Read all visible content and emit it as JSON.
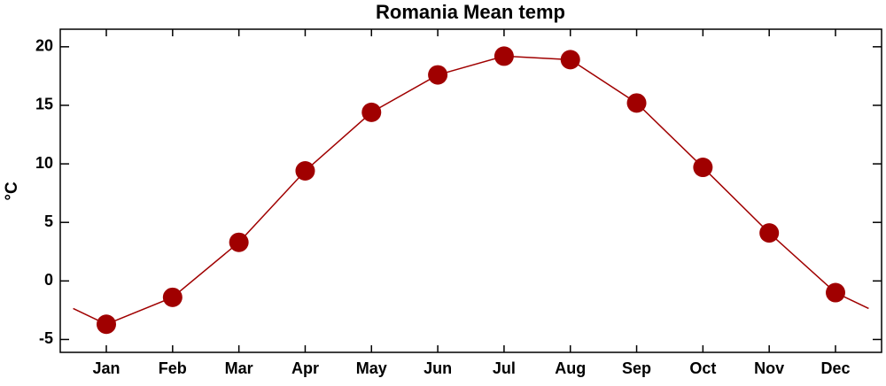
{
  "chart_data": {
    "type": "line",
    "title": "Romania Mean temp",
    "y_label": "°C",
    "categories": [
      "Jan",
      "Feb",
      "Mar",
      "Apr",
      "May",
      "Jun",
      "Jul",
      "Aug",
      "Sep",
      "Oct",
      "Nov",
      "Dec"
    ],
    "series": [
      {
        "name": "Mean temp",
        "color": "#a00000",
        "values": [
          -3.7,
          -1.4,
          3.3,
          9.4,
          14.4,
          17.6,
          19.2,
          18.9,
          15.2,
          9.7,
          4.1,
          -1.0
        ]
      }
    ],
    "ylim": [
      -6.1,
      21.5
    ],
    "yticks": [
      -5,
      0,
      5,
      10,
      15,
      20
    ],
    "grid": false
  }
}
